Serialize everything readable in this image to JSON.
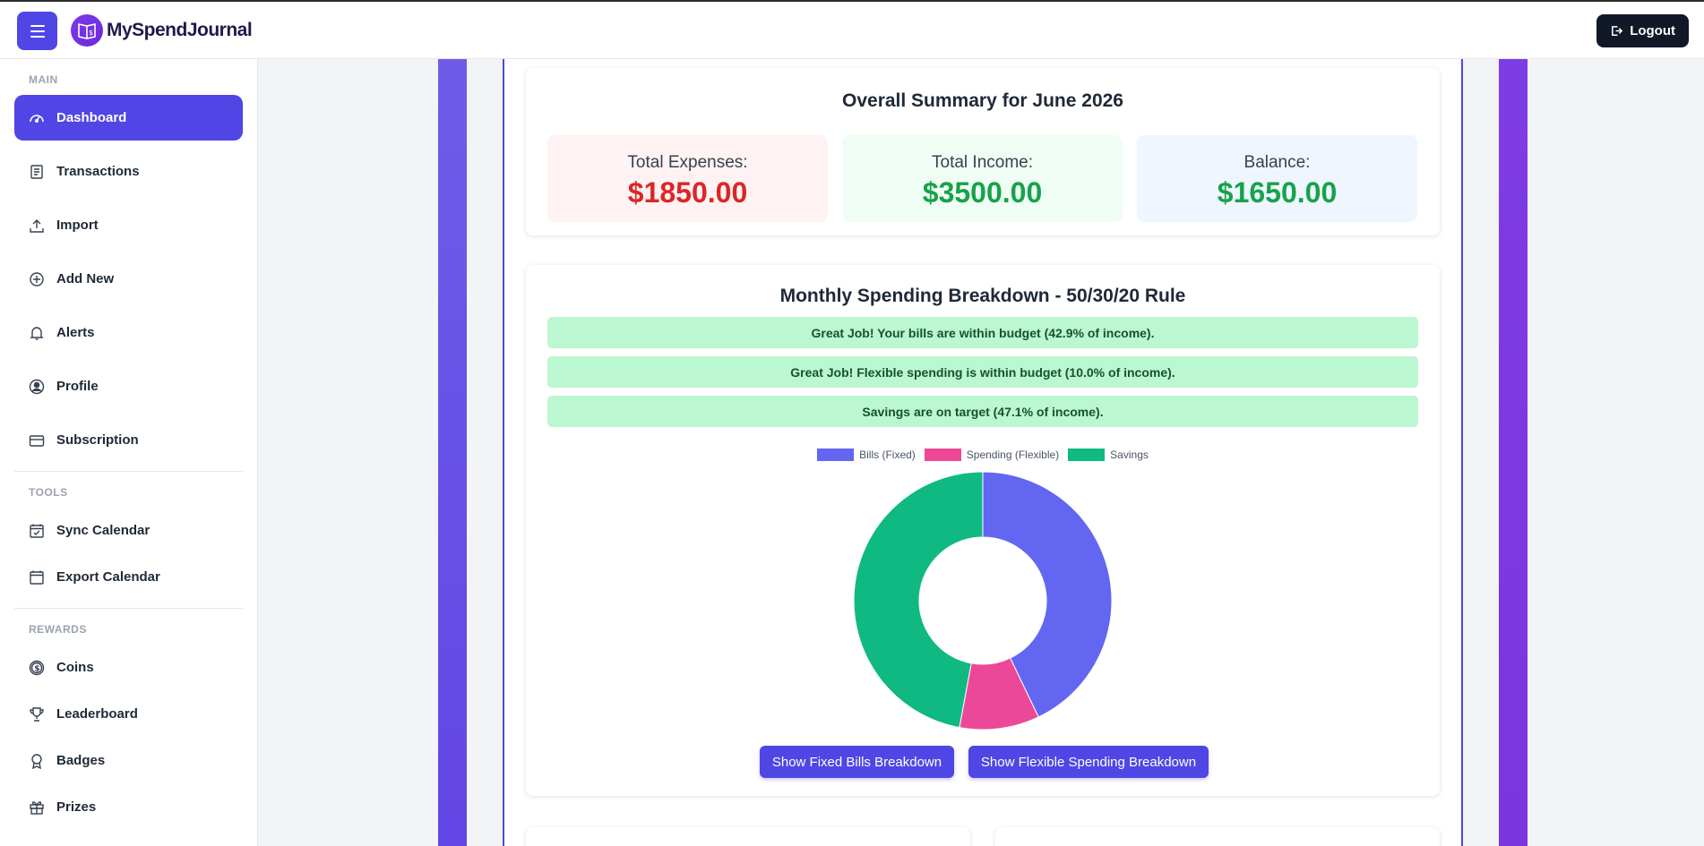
{
  "header": {
    "brand": "MySpendJournal",
    "logout_label": "Logout"
  },
  "sidebar": {
    "sections": [
      {
        "title": "MAIN"
      },
      {
        "title": "TOOLS"
      },
      {
        "title": "REWARDS"
      }
    ],
    "items": [
      {
        "label": "Dashboard",
        "icon": "gauge-icon",
        "active": true
      },
      {
        "label": "Transactions",
        "icon": "receipt-icon"
      },
      {
        "label": "Import",
        "icon": "upload-icon"
      },
      {
        "label": "Add New",
        "icon": "plus-circle-icon"
      },
      {
        "label": "Alerts",
        "icon": "bell-icon"
      },
      {
        "label": "Profile",
        "icon": "user-circle-icon"
      },
      {
        "label": "Subscription",
        "icon": "credit-card-icon"
      },
      {
        "label": "Sync Calendar",
        "icon": "calendar-check-icon"
      },
      {
        "label": "Export Calendar",
        "icon": "calendar-icon"
      },
      {
        "label": "Coins",
        "icon": "coin-icon"
      },
      {
        "label": "Leaderboard",
        "icon": "trophy-icon"
      },
      {
        "label": "Badges",
        "icon": "badge-icon"
      },
      {
        "label": "Prizes",
        "icon": "gift-icon"
      }
    ]
  },
  "summary": {
    "title": "Overall Summary for June 2026",
    "expenses": {
      "label": "Total Expenses:",
      "value": "$1850.00",
      "color": "#dc2626",
      "bg": "#fef2f2"
    },
    "income": {
      "label": "Total Income:",
      "value": "$3500.00",
      "color": "#16a34a",
      "bg": "#f0fdf4"
    },
    "balance": {
      "label": "Balance:",
      "value": "$1650.00",
      "color": "#16a34a",
      "bg": "#eff6ff"
    }
  },
  "breakdown": {
    "title": "Monthly Spending Breakdown - 50/30/20 Rule",
    "alerts": [
      "Great Job! Your bills are within budget (42.9% of income).",
      "Great Job! Flexible spending is within budget (10.0% of income).",
      "Savings are on target (47.1% of income)."
    ],
    "buttons": {
      "fixed": "Show Fixed Bills Breakdown",
      "flexible": "Show Flexible Spending Breakdown"
    }
  },
  "chart_data": {
    "type": "pie",
    "categories": [
      "Bills (Fixed)",
      "Spending (Flexible)",
      "Savings"
    ],
    "values": [
      42.9,
      10.0,
      47.1
    ],
    "colors": [
      "#6366f1",
      "#ec4899",
      "#10b981"
    ],
    "legend_position": "top"
  }
}
